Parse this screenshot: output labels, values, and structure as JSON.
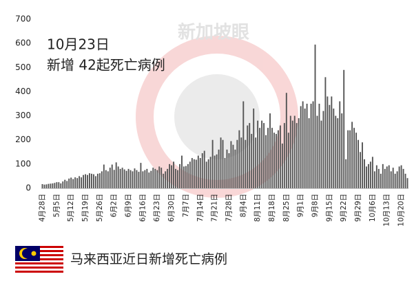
{
  "chart_data": {
    "type": "bar",
    "title": "10月23日",
    "subtitle": "新增 42起死亡病例",
    "caption": "马来西亚近日新增死亡病例",
    "watermark": "新加坡眼",
    "color": "#555555",
    "ylim": [
      0,
      700
    ],
    "yticks": [
      0,
      100,
      200,
      300,
      400,
      500,
      600,
      700
    ],
    "grid": false,
    "categories": [
      "4月28日",
      null,
      null,
      null,
      null,
      null,
      null,
      "5月5日",
      null,
      null,
      null,
      null,
      null,
      null,
      "5月12日",
      null,
      null,
      null,
      null,
      null,
      null,
      "5月19日",
      null,
      null,
      null,
      null,
      null,
      null,
      "5月26日",
      null,
      null,
      null,
      null,
      null,
      null,
      "6月2日",
      null,
      null,
      null,
      null,
      null,
      null,
      "6月9日",
      null,
      null,
      null,
      null,
      null,
      null,
      "6月16日",
      null,
      null,
      null,
      null,
      null,
      null,
      "6月23日",
      null,
      null,
      null,
      null,
      null,
      null,
      "6月30日",
      null,
      null,
      null,
      null,
      null,
      null,
      "7月7日",
      null,
      null,
      null,
      null,
      null,
      null,
      "7月14日",
      null,
      null,
      null,
      null,
      null,
      null,
      "7月21日",
      null,
      null,
      null,
      null,
      null,
      null,
      "7月28日",
      null,
      null,
      null,
      null,
      null,
      null,
      "8月4日",
      null,
      null,
      null,
      null,
      null,
      null,
      "8月11日",
      null,
      null,
      null,
      null,
      null,
      null,
      "8月18日",
      null,
      null,
      null,
      null,
      null,
      null,
      "8月25日",
      null,
      null,
      null,
      null,
      null,
      null,
      "9月1日",
      null,
      null,
      null,
      null,
      null,
      null,
      "9月8日",
      null,
      null,
      null,
      null,
      null,
      null,
      "9月15日",
      null,
      null,
      null,
      null,
      null,
      null,
      "9月22日",
      null,
      null,
      null,
      null,
      null,
      null,
      "9月29日",
      null,
      null,
      null,
      null,
      null,
      null,
      "10月6日",
      null,
      null,
      null,
      null,
      null,
      null,
      "10月13日",
      null,
      null,
      null,
      null,
      null,
      null,
      "10月20日",
      null,
      null,
      null
    ],
    "values": [
      17,
      15,
      16,
      18,
      19,
      20,
      22,
      25,
      25,
      20,
      28,
      35,
      30,
      40,
      44,
      38,
      45,
      42,
      50,
      45,
      55,
      58,
      55,
      62,
      60,
      58,
      50,
      60,
      62,
      70,
      98,
      75,
      70,
      85,
      98,
      76,
      107,
      90,
      80,
      85,
      78,
      72,
      80,
      75,
      70,
      82,
      75,
      68,
      105,
      70,
      75,
      80,
      65,
      72,
      85,
      80,
      75,
      90,
      85,
      60,
      70,
      80,
      100,
      95,
      110,
      80,
      75,
      100,
      135,
      90,
      92,
      100,
      110,
      125,
      120,
      118,
      135,
      125,
      145,
      155,
      110,
      120,
      130,
      200,
      135,
      140,
      160,
      210,
      200,
      125,
      160,
      145,
      195,
      180,
      160,
      200,
      240,
      210,
      360,
      200,
      260,
      270,
      225,
      330,
      210,
      280,
      250,
      280,
      270,
      220,
      250,
      310,
      250,
      230,
      225,
      240,
      260,
      185,
      270,
      395,
      230,
      300,
      280,
      300,
      270,
      290,
      340,
      360,
      330,
      350,
      290,
      350,
      360,
      595,
      300,
      350,
      280,
      320,
      460,
      380,
      345,
      380,
      330,
      300,
      290,
      360,
      310,
      490,
      120,
      240,
      240,
      275,
      250,
      230,
      200,
      150,
      190,
      120,
      90,
      100,
      110,
      130,
      70,
      95,
      80,
      60,
      100,
      80,
      90,
      95,
      70,
      85,
      60,
      70,
      90,
      95,
      80,
      60,
      42
    ]
  }
}
